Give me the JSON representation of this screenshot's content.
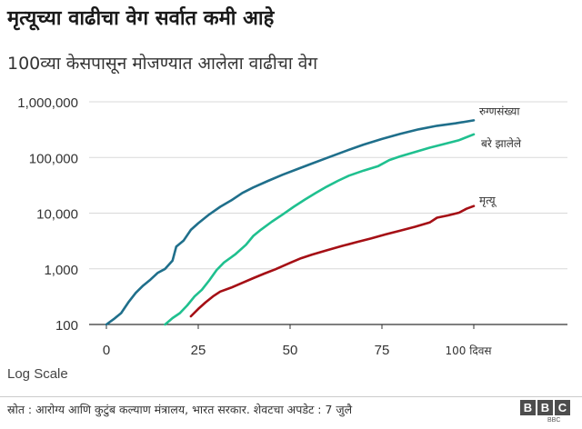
{
  "header": {
    "title": "मृत्यूच्या वाढीचा वेग सर्वात कमी आहे",
    "subtitle": "100व्या केसपासून मोजण्यात आलेला वाढीचा वेग"
  },
  "footer": {
    "source": "स्रोत : आरोग्य आणि कुटुंब कल्याण मंत्रालय, भारत सरकार.  शेवटचा अपडेट : 7 जुलै",
    "logo_letters": [
      "B",
      "B",
      "C"
    ],
    "logo_sub": "BBC"
  },
  "chart_data": {
    "type": "line",
    "title": "मृत्यूच्या वाढीचा वेग सर्वात कमी आहे",
    "subtitle": "100व्या केसपासून मोजण्यात आलेला वाढीचा वेग",
    "scale": "log",
    "scale_note": "Log Scale",
    "xlabel": "",
    "ylabel": "",
    "xlim": [
      0,
      100
    ],
    "ylim": [
      100,
      1000000
    ],
    "x_ticks": [
      0,
      25,
      50,
      75
    ],
    "x_tick_labels": [
      "0",
      "25",
      "50",
      "75"
    ],
    "x_end_label": "100 दिवस",
    "y_ticks": [
      100,
      1000,
      10000,
      100000,
      1000000
    ],
    "y_tick_labels": [
      "100",
      "1,000",
      "10,000",
      "100,000",
      "1,000,000"
    ],
    "grid": "horizontal",
    "legend": "inline labels at line ends",
    "series": [
      {
        "name": "रुग्णसंख्या",
        "color": "#1f6f8b",
        "x": [
          0,
          2,
          4,
          6,
          8,
          10,
          12,
          14,
          16,
          18,
          19,
          21,
          23,
          25,
          28,
          31,
          34,
          37,
          40,
          44,
          48,
          52,
          56,
          60,
          65,
          70,
          75,
          80,
          85,
          90,
          95,
          100
        ],
        "y": [
          100,
          125,
          160,
          250,
          370,
          500,
          640,
          850,
          1000,
          1400,
          2500,
          3200,
          5000,
          6600,
          9500,
          13000,
          17000,
          23000,
          29000,
          38000,
          49000,
          62000,
          78000,
          98000,
          130000,
          170000,
          215000,
          265000,
          320000,
          370000,
          410000,
          465000
        ]
      },
      {
        "name": "बरे झालेले",
        "color": "#1fc08f",
        "x": [
          16,
          18,
          20,
          22,
          24,
          26,
          28,
          30,
          32,
          35,
          38,
          40,
          42,
          45,
          48,
          51,
          54,
          57,
          60,
          63,
          66,
          70,
          74,
          77,
          80,
          84,
          88,
          92,
          96,
          100
        ],
        "y": [
          100,
          130,
          160,
          220,
          320,
          420,
          620,
          950,
          1300,
          1800,
          2700,
          3900,
          5000,
          7000,
          9500,
          13000,
          17500,
          23000,
          30000,
          38000,
          47000,
          58000,
          70000,
          90000,
          105000,
          125000,
          150000,
          175000,
          205000,
          260000
        ]
      },
      {
        "name": "मृत्यू",
        "color": "#a50f15",
        "x": [
          23,
          25,
          27,
          29,
          31,
          34,
          37,
          40,
          43,
          46,
          50,
          53,
          56,
          60,
          64,
          68,
          72,
          76,
          80,
          84,
          88,
          90,
          93,
          96,
          98,
          100
        ],
        "y": [
          140,
          190,
          250,
          320,
          390,
          460,
          560,
          680,
          820,
          980,
          1280,
          1550,
          1800,
          2150,
          2550,
          3000,
          3500,
          4150,
          4850,
          5700,
          6800,
          8300,
          9100,
          10200,
          12000,
          13400
        ]
      }
    ]
  }
}
